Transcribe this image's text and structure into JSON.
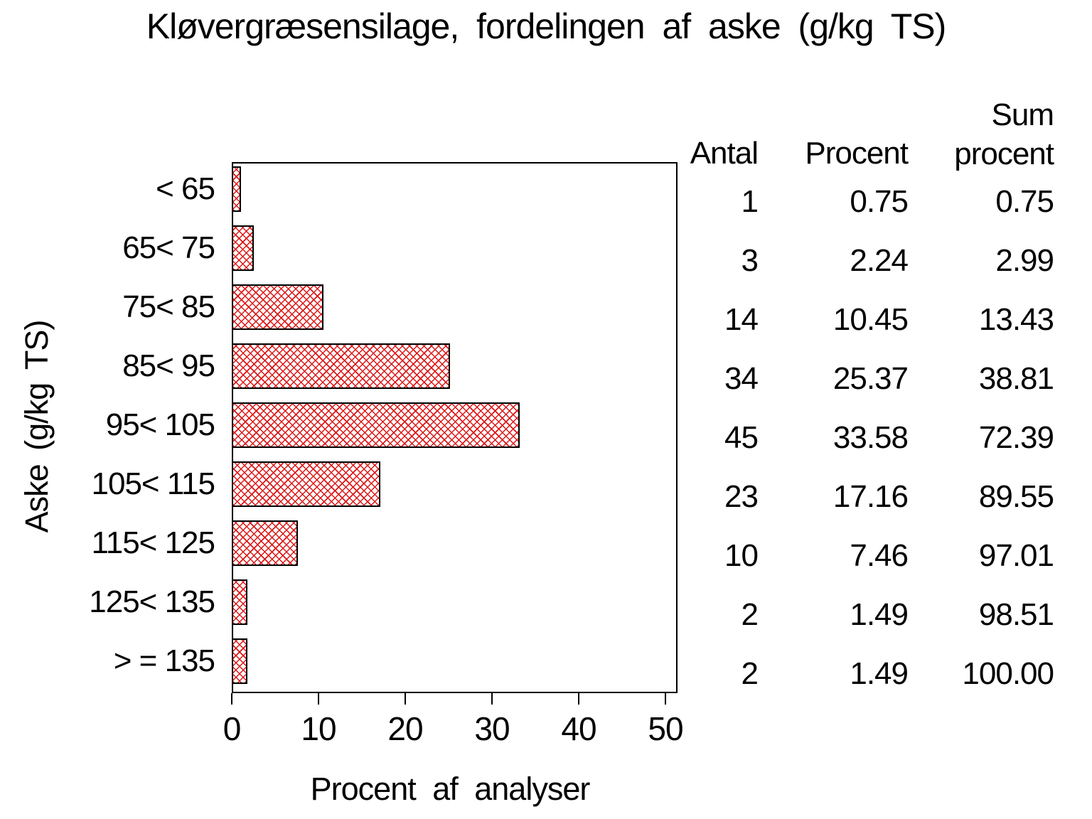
{
  "title": "Kløvergræsensilage, fordelingen af aske (g/kg TS)",
  "chart_data": {
    "type": "bar",
    "orientation": "horizontal",
    "title": "Kløvergræsensilage, fordelingen af aske (g/kg TS)",
    "xlabel": "Procent af analyser",
    "ylabel": "Aske (g/kg TS)",
    "categories": [
      "< 65",
      "65< 75",
      "75< 85",
      "85< 95",
      "95< 105",
      "105< 115",
      "115< 125",
      "125< 135",
      "> = 135"
    ],
    "series": [
      {
        "name": "Procent af analyser",
        "values": [
          0.75,
          2.24,
          10.45,
          25.37,
          33.58,
          17.16,
          7.46,
          1.49,
          1.49
        ]
      }
    ],
    "xlim": [
      0,
      50
    ],
    "xticks": [
      "0",
      "10",
      "20",
      "30",
      "40",
      "50"
    ],
    "grid": "off",
    "legend": "none",
    "colors": {
      "bar_hatch": "#dd1414",
      "bar_border": "#000000",
      "axis": "#000000",
      "background": "#ffffff"
    },
    "bar_style": "diagonal-crosshatch",
    "table": {
      "header": {
        "antal": "Antal",
        "procent": "Procent",
        "sum_line1": "Sum",
        "sum_line2": "procent"
      },
      "columns": [
        "Antal",
        "Procent",
        "Sum procent"
      ],
      "rows": [
        [
          "1",
          "0.75",
          "0.75"
        ],
        [
          "3",
          "2.24",
          "2.99"
        ],
        [
          "14",
          "10.45",
          "13.43"
        ],
        [
          "34",
          "25.37",
          "38.81"
        ],
        [
          "45",
          "33.58",
          "72.39"
        ],
        [
          "23",
          "17.16",
          "89.55"
        ],
        [
          "10",
          "7.46",
          "97.01"
        ],
        [
          "2",
          "1.49",
          "98.51"
        ],
        [
          "2",
          "1.49",
          "100.00"
        ]
      ]
    }
  }
}
